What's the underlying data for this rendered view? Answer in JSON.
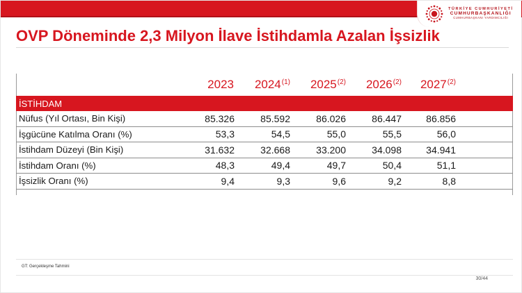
{
  "logo": {
    "line1": "TÜRKİYE CUMHURİYETİ",
    "line2": "CUMHURBAŞKANLIĞI",
    "line3": "CUMHURBAŞKANI YARDIMCILIĞI"
  },
  "title": "OVP Döneminde 2,3 Milyon İlave İstihdamla Azalan İşsizlik",
  "table": {
    "years": [
      {
        "year": "2023",
        "note": ""
      },
      {
        "year": "2024",
        "note": "(1)"
      },
      {
        "year": "2025",
        "note": "(2)"
      },
      {
        "year": "2026",
        "note": "(2)"
      },
      {
        "year": "2027",
        "note": "(2)"
      }
    ],
    "section_label": "İSTİHDAM",
    "rows": [
      {
        "label": "Nüfus (Yıl Ortası, Bin Kişi)",
        "values": [
          "85.326",
          "85.592",
          "86.026",
          "86.447",
          "86.856"
        ]
      },
      {
        "label": "İşgücüne Katılma Oranı (%)",
        "values": [
          "53,3",
          "54,5",
          "55,0",
          "55,5",
          "56,0"
        ]
      },
      {
        "label": "İstihdam Düzeyi (Bin Kişi)",
        "values": [
          "31.632",
          "32.668",
          "33.200",
          "34.098",
          "34.941"
        ]
      },
      {
        "label": "İstihdam Oranı (%)",
        "values": [
          "48,3",
          "49,4",
          "49,7",
          "50,4",
          "51,1"
        ]
      },
      {
        "label": "İşsizlik Oranı (%)",
        "values": [
          "9,4",
          "9,3",
          "9,6",
          "9,2",
          "8,8"
        ]
      }
    ]
  },
  "footnote": "GT: Gerçekleşme Tahmini",
  "page_number": "30/44",
  "colors": {
    "accent": "#d7161f"
  }
}
